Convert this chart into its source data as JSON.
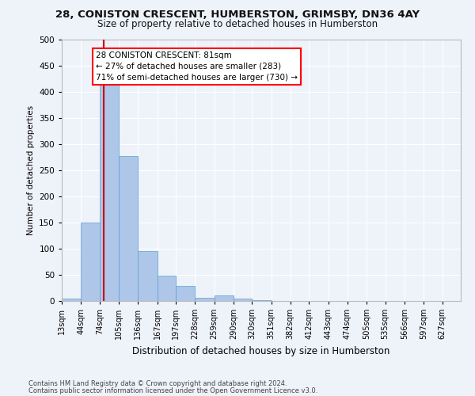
{
  "title_line1": "28, CONISTON CRESCENT, HUMBERSTON, GRIMSBY, DN36 4AY",
  "title_line2": "Size of property relative to detached houses in Humberston",
  "xlabel": "Distribution of detached houses by size in Humberston",
  "ylabel": "Number of detached properties",
  "footnote1": "Contains HM Land Registry data © Crown copyright and database right 2024.",
  "footnote2": "Contains public sector information licensed under the Open Government Licence v3.0.",
  "bin_labels": [
    "13sqm",
    "44sqm",
    "74sqm",
    "105sqm",
    "136sqm",
    "167sqm",
    "197sqm",
    "228sqm",
    "259sqm",
    "290sqm",
    "320sqm",
    "351sqm",
    "382sqm",
    "412sqm",
    "443sqm",
    "474sqm",
    "505sqm",
    "535sqm",
    "566sqm",
    "597sqm",
    "627sqm"
  ],
  "bar_heights": [
    5,
    150,
    420,
    278,
    95,
    48,
    29,
    6,
    10,
    4,
    2,
    0,
    0,
    0,
    0,
    0,
    0,
    0,
    0,
    0,
    0
  ],
  "bar_color": "#aec6e8",
  "bar_edge_color": "#5a9fd4",
  "property_line_x": 81,
  "bin_edges_numeric": [
    13,
    44,
    74,
    105,
    136,
    167,
    197,
    228,
    259,
    290,
    320,
    351,
    382,
    412,
    443,
    474,
    505,
    535,
    566,
    597,
    627
  ],
  "annotation_box_text": [
    "28 CONISTON CRESCENT: 81sqm",
    "← 27% of detached houses are smaller (283)",
    "71% of semi-detached houses are larger (730) →"
  ],
  "red_line_color": "#cc0000",
  "background_color": "#eef2f9",
  "grid_color": "#ffffff",
  "ylim": [
    0,
    500
  ],
  "yticks": [
    0,
    50,
    100,
    150,
    200,
    250,
    300,
    350,
    400,
    450,
    500
  ]
}
